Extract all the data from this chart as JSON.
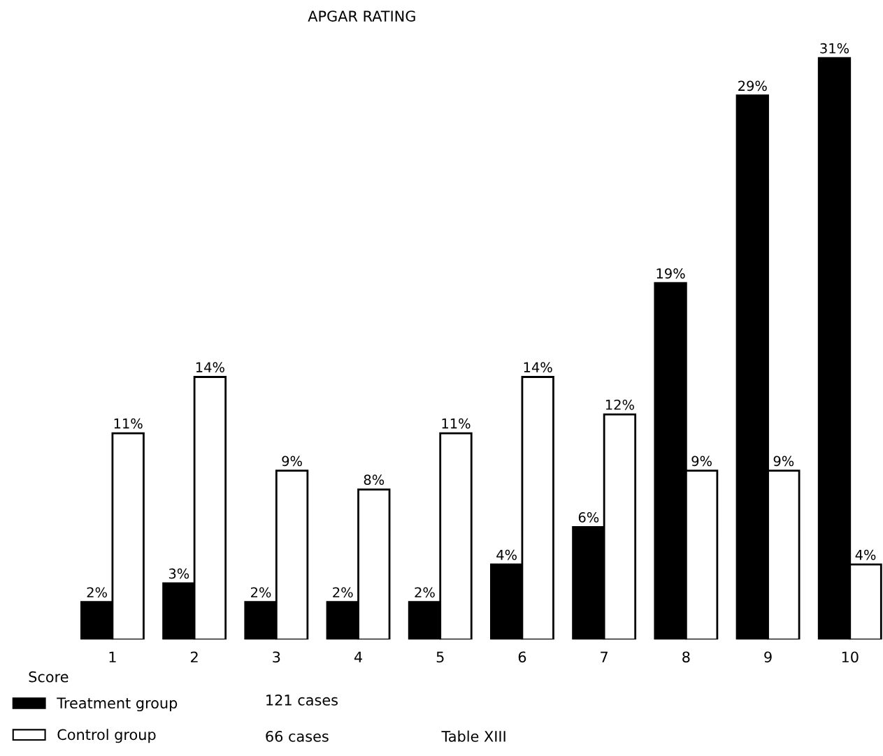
{
  "chart_data": {
    "type": "bar",
    "title": "APGAR RATING",
    "xlabel": "Score",
    "categories": [
      "1",
      "2",
      "3",
      "4",
      "5",
      "6",
      "7",
      "8",
      "9",
      "10"
    ],
    "series": [
      {
        "name": "Treatment group",
        "color": "#000000",
        "values": [
          2,
          3,
          2,
          2,
          2,
          4,
          6,
          19,
          29,
          31
        ],
        "value_labels": [
          "2%",
          "3%",
          "2%",
          "2%",
          "2%",
          "4%",
          "6%",
          "19%",
          "29%",
          "31%"
        ]
      },
      {
        "name": "Control group",
        "color": "#ffffff",
        "values": [
          11,
          14,
          9,
          8,
          11,
          14,
          12,
          9,
          9,
          4
        ],
        "value_labels": [
          "11%",
          "14%",
          "9%",
          "8%",
          "11%",
          "14%",
          "12%",
          "9%",
          "9%",
          "4%"
        ]
      }
    ],
    "annotations": [
      "121 cases",
      "66 cases",
      "Table XIII"
    ],
    "legend": "bottom left",
    "grid": false
  }
}
